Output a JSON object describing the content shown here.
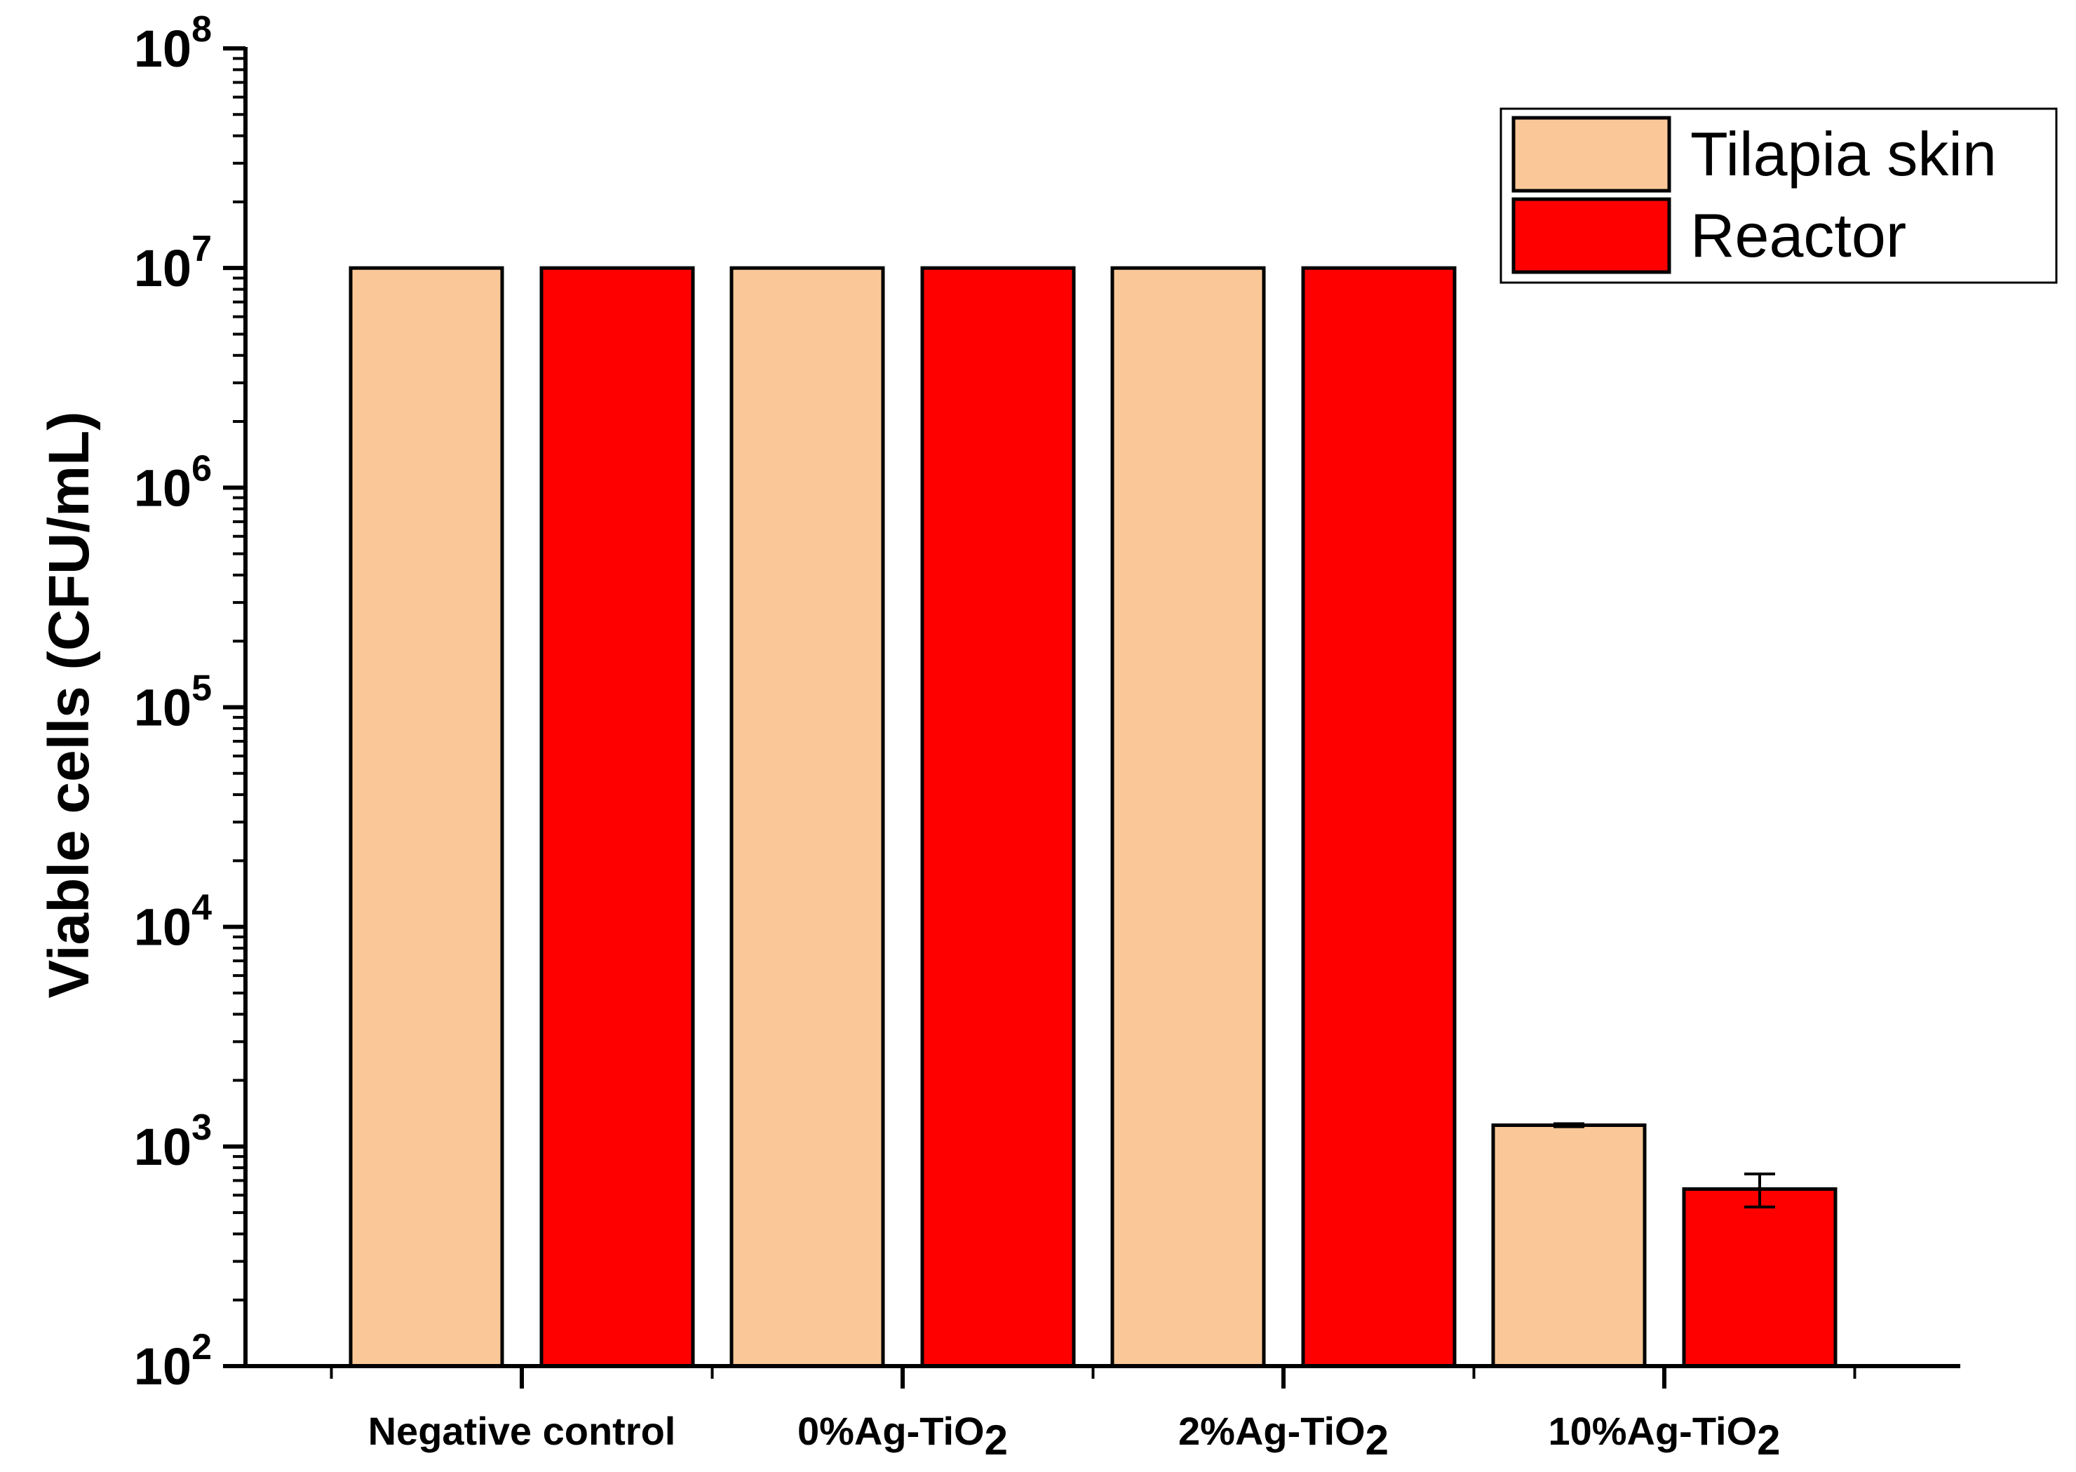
{
  "chart_data": {
    "type": "bar",
    "title": "",
    "xlabel": "",
    "ylabel": "Viable cells (CFU/mL)",
    "yscale": "log",
    "ylim": [
      100,
      100000000
    ],
    "ytick_values": [
      100,
      1000,
      10000,
      100000,
      1000000,
      10000000,
      100000000
    ],
    "ytick_labels": [
      {
        "base": "10",
        "exp": "2"
      },
      {
        "base": "10",
        "exp": "3"
      },
      {
        "base": "10",
        "exp": "4"
      },
      {
        "base": "10",
        "exp": "5"
      },
      {
        "base": "10",
        "exp": "6"
      },
      {
        "base": "10",
        "exp": "7"
      },
      {
        "base": "10",
        "exp": "8"
      }
    ],
    "categories": [
      {
        "main": "Negative control",
        "sub": ""
      },
      {
        "main": "0%Ag-TiO",
        "sub": "2"
      },
      {
        "main": "2%Ag-TiO",
        "sub": "2"
      },
      {
        "main": "10%Ag-TiO",
        "sub": "2"
      }
    ],
    "series": [
      {
        "name": "Tilapia skin",
        "color": "#FAC898",
        "values": [
          10000000,
          10000000,
          10000000,
          1250
        ],
        "errors": [
          0,
          0,
          0,
          20
        ]
      },
      {
        "name": "Reactor",
        "color": "#FF0000",
        "values": [
          10000000,
          10000000,
          10000000,
          640
        ],
        "errors": [
          0,
          0,
          0,
          110
        ]
      }
    ],
    "legend_position": "top-right",
    "grid": false
  }
}
